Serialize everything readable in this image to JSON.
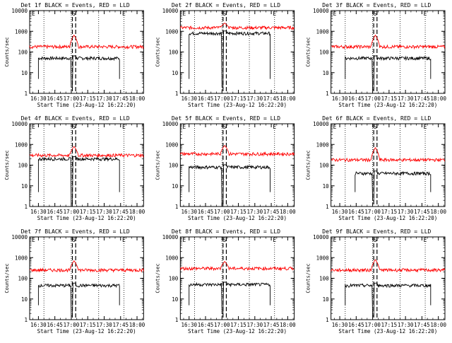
{
  "layout": {
    "rows": 3,
    "cols": 3
  },
  "shared": {
    "x_tick_labels": [
      "16:30",
      "16:45",
      "17:00",
      "17:15",
      "17:30",
      "17:45",
      "18:00"
    ],
    "x_ticks_min": [
      0,
      15,
      30,
      45,
      60,
      75,
      90
    ],
    "xlim_min": [
      -8,
      96
    ],
    "y_tick_labels": [
      "1",
      "10",
      "100",
      "1000",
      "10000"
    ],
    "y_tick_values": [
      1,
      10,
      100,
      1000,
      10000
    ],
    "ylim": [
      1,
      10000
    ],
    "ylabel": "Counts/sec",
    "xlabel": "Start Time (23-Aug-12 16:22:20)",
    "colors": {
      "events": "#000000",
      "lld": "#ff0000",
      "marker": "#000000"
    },
    "markers": {
      "S_label": "S",
      "E_label": "E"
    }
  },
  "chart_data": [
    {
      "type": "line",
      "title": "Det 1f BLACK = Events, RED = LLD",
      "series": [
        {
          "name": "Events",
          "color": "#000000",
          "x_range_min": [
            0,
            74
          ],
          "level": 50,
          "dip_to": 2
        },
        {
          "name": "LLD",
          "color": "#ff0000",
          "x_range_min": [
            -8,
            96
          ],
          "level": 180,
          "bump": 650
        }
      ],
      "dotted_x_min": [
        5,
        30,
        55,
        78
      ],
      "S_x_min": [
        31,
        34
      ],
      "E_x_min": 78
    },
    {
      "type": "line",
      "title": "Det 2f BLACK = Events, RED = LLD",
      "series": [
        {
          "name": "Events",
          "color": "#000000",
          "x_range_min": [
            0,
            74
          ],
          "level": 800,
          "dip_to": 2
        },
        {
          "name": "LLD",
          "color": "#ff0000",
          "x_range_min": [
            -8,
            96
          ],
          "level": 1500,
          "bump": 2500
        }
      ],
      "dotted_x_min": [
        5,
        30,
        55,
        78
      ],
      "S_x_min": [
        31,
        34
      ],
      "E_x_min": 78
    },
    {
      "type": "line",
      "title": "Det 3f BLACK = Events, RED = LLD",
      "series": [
        {
          "name": "Events",
          "color": "#000000",
          "x_range_min": [
            5,
            83
          ],
          "level": 50,
          "dip_to": 1.5
        },
        {
          "name": "LLD",
          "color": "#ff0000",
          "x_range_min": [
            -8,
            96
          ],
          "level": 180,
          "bump": 650
        }
      ],
      "dotted_x_min": [
        5,
        30,
        55,
        78
      ],
      "S_x_min": [
        31,
        34
      ],
      "E_x_min": 78
    },
    {
      "type": "line",
      "title": "Det 4f BLACK = Events, RED = LLD",
      "series": [
        {
          "name": "Events",
          "color": "#000000",
          "x_range_min": [
            0,
            74
          ],
          "level": 200,
          "dip_to": 1
        },
        {
          "name": "LLD",
          "color": "#ff0000",
          "x_range_min": [
            -8,
            96
          ],
          "level": 300,
          "bump": 800
        }
      ],
      "dotted_x_min": [
        5,
        30,
        55,
        78
      ],
      "S_x_min": [
        31,
        34
      ],
      "E_x_min": 78
    },
    {
      "type": "line",
      "title": "Det 5f BLACK = Events, RED = LLD",
      "series": [
        {
          "name": "Events",
          "color": "#000000",
          "x_range_min": [
            0,
            74
          ],
          "level": 80,
          "dip_to": 1
        },
        {
          "name": "LLD",
          "color": "#ff0000",
          "x_range_min": [
            -8,
            96
          ],
          "level": 350,
          "bump": 900
        }
      ],
      "dotted_x_min": [
        5,
        30,
        55,
        78
      ],
      "S_x_min": [
        31,
        34
      ],
      "E_x_min": 78
    },
    {
      "type": "line",
      "title": "Det 6f BLACK = Events, RED = LLD",
      "series": [
        {
          "name": "Events",
          "color": "#000000",
          "x_range_min": [
            14,
            83
          ],
          "level": 40,
          "dip_to": 2
        },
        {
          "name": "LLD",
          "color": "#ff0000",
          "x_range_min": [
            -8,
            96
          ],
          "level": 180,
          "bump": 700
        }
      ],
      "dotted_x_min": [
        5,
        30,
        55,
        78
      ],
      "S_x_min": [
        31,
        34
      ],
      "E_x_min": 78
    },
    {
      "type": "line",
      "title": "Det 7f BLACK = Events, RED = LLD",
      "series": [
        {
          "name": "Events",
          "color": "#000000",
          "x_range_min": [
            0,
            74
          ],
          "level": 45,
          "dip_to": 1.5
        },
        {
          "name": "LLD",
          "color": "#ff0000",
          "x_range_min": [
            -8,
            96
          ],
          "level": 250,
          "bump": 700
        }
      ],
      "dotted_x_min": [
        5,
        30,
        55,
        78
      ],
      "S_x_min": [
        31,
        34
      ],
      "E_x_min": 78
    },
    {
      "type": "line",
      "title": "Det 8f BLACK = Events, RED = LLD",
      "series": [
        {
          "name": "Events",
          "color": "#000000",
          "x_range_min": [
            0,
            74
          ],
          "level": 50,
          "dip_to": 2
        },
        {
          "name": "LLD",
          "color": "#ff0000",
          "x_range_min": [
            -8,
            96
          ],
          "level": 300,
          "bump": 650
        }
      ],
      "dotted_x_min": [
        5,
        30,
        55,
        78
      ],
      "S_x_min": [
        31,
        34
      ],
      "E_x_min": 78
    },
    {
      "type": "line",
      "title": "Det 9f BLACK = Events, RED = LLD",
      "series": [
        {
          "name": "Events",
          "color": "#000000",
          "x_range_min": [
            5,
            83
          ],
          "level": 45,
          "dip_to": 1.5
        },
        {
          "name": "LLD",
          "color": "#ff0000",
          "x_range_min": [
            -8,
            96
          ],
          "level": 250,
          "bump": 800
        }
      ],
      "dotted_x_min": [
        5,
        30,
        55,
        78
      ],
      "S_x_min": [
        31,
        34
      ],
      "E_x_min": 78
    }
  ]
}
